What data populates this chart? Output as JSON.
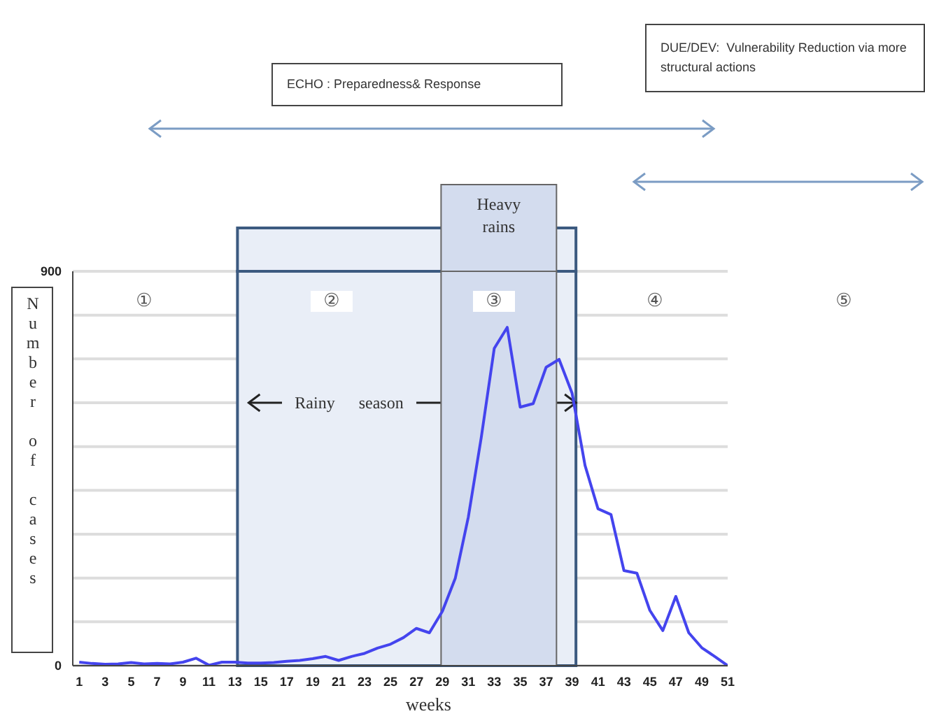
{
  "chart_data": {
    "type": "line",
    "xlabel": "weeks",
    "ylabel": "Number of cases",
    "x": [
      1,
      2,
      3,
      4,
      5,
      6,
      7,
      8,
      9,
      10,
      11,
      12,
      13,
      14,
      15,
      16,
      17,
      18,
      19,
      20,
      21,
      22,
      23,
      24,
      25,
      26,
      27,
      28,
      29,
      30,
      31,
      32,
      33,
      34,
      35,
      36,
      37,
      38,
      39,
      40,
      41,
      42,
      43,
      44,
      45,
      46,
      47,
      48,
      49,
      50,
      51
    ],
    "values": [
      8,
      5,
      3,
      4,
      7,
      4,
      5,
      4,
      8,
      17,
      1,
      8,
      8,
      6,
      6,
      7,
      10,
      12,
      16,
      21,
      12,
      21,
      28,
      40,
      49,
      64,
      85,
      75,
      124,
      200,
      339,
      521,
      724,
      772,
      590,
      598,
      681,
      699,
      622,
      457,
      358,
      345,
      217,
      211,
      126,
      80,
      158,
      75,
      41,
      21,
      0
    ],
    "color": "#4444ee",
    "line_style": "solid",
    "xlim": [
      0.5,
      51
    ],
    "xticks": [
      1,
      3,
      5,
      7,
      9,
      11,
      13,
      15,
      17,
      19,
      21,
      23,
      25,
      27,
      29,
      31,
      33,
      35,
      37,
      39,
      41,
      43,
      45,
      47,
      49,
      51
    ],
    "ylim": [
      0,
      900
    ],
    "yticks": [
      0,
      {
        "value": 100,
        "label": null
      },
      {
        "value": 200,
        "label": null
      },
      {
        "value": 300,
        "label": null
      },
      {
        "value": 400,
        "label": null
      },
      {
        "value": 500,
        "label": null
      },
      {
        "value": 600,
        "label": null
      },
      {
        "value": 700,
        "label": null
      },
      {
        "value": 800,
        "label": null
      },
      900
    ],
    "grid": "y",
    "bands": [
      {
        "axis": "x",
        "from": 13.2,
        "to": 39.3,
        "label": "Rainy season",
        "color": "#e9eef7"
      },
      {
        "axis": "x",
        "from": 28.9,
        "to": 37.8,
        "label": "Heavy rains",
        "color": "#d3dcee"
      }
    ],
    "annotations": [
      "ECHO : Preparedness& Response",
      "DUE/DEV:  Vulnerability Reduction via more structural actions",
      "①",
      "②",
      "③",
      "④",
      "⑤"
    ]
  }
}
